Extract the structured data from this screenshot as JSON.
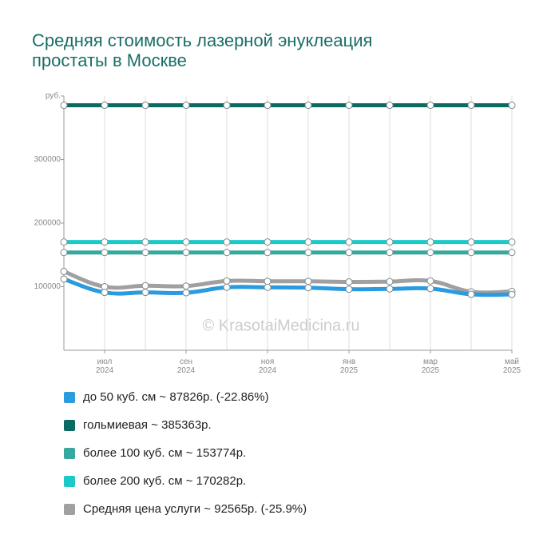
{
  "chart_data": {
    "type": "line",
    "title": [
      "Средняя стоимость лазерной энуклеация",
      "простаты в Москве"
    ],
    "watermark": "© KrasotaiMedicina.ru",
    "categories": [
      null,
      "июл 2024",
      null,
      "сен 2024",
      null,
      "ноя 2024",
      null,
      "янв 2025",
      null,
      "мар 2025",
      null,
      "май 2025"
    ],
    "ylim": [
      0,
      400000
    ],
    "yticks": [
      100000,
      200000,
      300000,
      {
        "value": 400000,
        "label": "руб."
      }
    ],
    "series": [
      {
        "name": "до 50 куб. см ~ 87826р. (-22.86%)",
        "color": "#2b9be0",
        "values": [
          112000,
          91000,
          91000,
          90500,
          99000,
          99000,
          98500,
          96000,
          96500,
          97000,
          88000,
          87826
        ]
      },
      {
        "name": "гольмиевая ~ 385363р.",
        "color": "#0b6b62",
        "values": [
          385363,
          385363,
          385363,
          385363,
          385363,
          385363,
          385363,
          385363,
          385363,
          385363,
          385363,
          385363
        ]
      },
      {
        "name": "более 100 куб. см ~ 153774р.",
        "color": "#36a89e",
        "values": [
          153774,
          153774,
          153774,
          153774,
          153774,
          153774,
          153774,
          153774,
          153774,
          153774,
          153774,
          153774
        ]
      },
      {
        "name": "более 200 куб. см ~ 170282р.",
        "color": "#1cc9c9",
        "values": [
          170282,
          170282,
          170282,
          170282,
          170282,
          170282,
          170282,
          170282,
          170282,
          170282,
          170282,
          170282
        ]
      },
      {
        "name": "Средняя цена услуги ~ 92565р. (-25.9%)",
        "color": "#a0a0a0",
        "values": [
          124000,
          100000,
          101500,
          101000,
          109000,
          108500,
          108500,
          107500,
          108000,
          109000,
          92000,
          92565
        ]
      }
    ]
  }
}
